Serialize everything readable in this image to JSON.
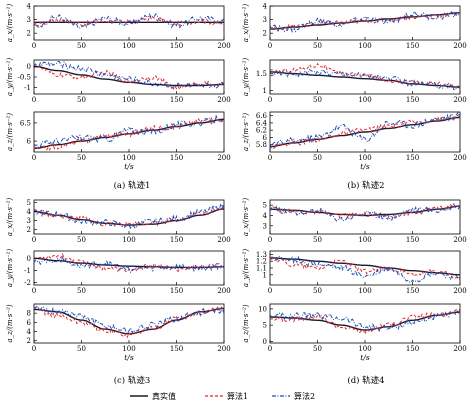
{
  "colors": {
    "truth": "#1a1a2e",
    "algo1": "#e8282a",
    "algo2": "#1f4fb4"
  },
  "legend": {
    "truth": "真实值",
    "algo1": "算法1",
    "algo2": "算法2"
  },
  "captions": [
    "(a) 轨迹1",
    "(b) 轨迹2",
    "(c) 轨迹3",
    "(d) 轨迹4"
  ],
  "xlabel": "t/s",
  "chart_data": [
    {
      "type": "line",
      "trajectory": "(a) 轨迹1",
      "row": 1,
      "xlim": [
        0,
        200
      ],
      "ylim": [
        1.5,
        4
      ],
      "xticks": [
        0,
        50,
        100,
        150,
        200
      ],
      "yticks": [
        2,
        3,
        4
      ],
      "ylabel": "a_x/(m·s⁻²)",
      "x": [
        0,
        25,
        50,
        75,
        100,
        125,
        150,
        175,
        200
      ],
      "series": [
        {
          "name": "真实值",
          "values": [
            2.8,
            2.8,
            2.8,
            2.8,
            2.8,
            2.8,
            2.8,
            2.8,
            2.8
          ]
        },
        {
          "name": "算法1",
          "values": [
            2.6,
            3.0,
            2.7,
            2.9,
            2.8,
            3.1,
            2.7,
            2.9,
            2.7
          ]
        },
        {
          "name": "算法2",
          "values": [
            2.5,
            3.2,
            2.4,
            3.1,
            2.7,
            3.3,
            2.6,
            3.1,
            2.9
          ]
        }
      ]
    },
    {
      "type": "line",
      "trajectory": "(a) 轨迹1",
      "row": 2,
      "xlim": [
        0,
        200
      ],
      "ylim": [
        -1.3,
        0.3
      ],
      "xticks": [
        0,
        50,
        100,
        150,
        200
      ],
      "yticks": [
        -1.0,
        -0.5,
        0.0
      ],
      "ylabel": "a_y/(m·s⁻²)",
      "x": [
        0,
        25,
        50,
        75,
        100,
        125,
        150,
        175,
        200
      ],
      "series": [
        {
          "name": "真实值",
          "values": [
            0.0,
            -0.2,
            -0.4,
            -0.6,
            -0.75,
            -0.85,
            -0.9,
            -0.9,
            -0.85
          ]
        },
        {
          "name": "算法1",
          "values": [
            0.0,
            -0.4,
            -0.5,
            -0.3,
            -0.7,
            -0.5,
            -1.0,
            -0.8,
            -0.9
          ]
        },
        {
          "name": "算法2",
          "values": [
            0.1,
            0.1,
            -0.1,
            -0.4,
            -0.6,
            -0.8,
            -0.9,
            -0.95,
            -0.85
          ]
        }
      ]
    },
    {
      "type": "line",
      "trajectory": "(a) 轨迹1",
      "row": 3,
      "xlim": [
        0,
        200
      ],
      "ylim": [
        5.7,
        6.8
      ],
      "xticks": [
        0,
        50,
        100,
        150,
        200
      ],
      "yticks": [
        6.0,
        6.5
      ],
      "ylabel": "a_z/(m·s⁻²)",
      "x": [
        0,
        25,
        50,
        75,
        100,
        125,
        150,
        175,
        200
      ],
      "series": [
        {
          "name": "真实值",
          "values": [
            5.8,
            5.9,
            6.0,
            6.1,
            6.2,
            6.3,
            6.4,
            6.5,
            6.6
          ]
        },
        {
          "name": "算法1",
          "values": [
            5.8,
            5.85,
            6.0,
            6.15,
            6.2,
            6.35,
            6.4,
            6.55,
            6.6
          ]
        },
        {
          "name": "算法2",
          "values": [
            5.9,
            6.0,
            6.1,
            6.05,
            6.3,
            6.25,
            6.45,
            6.5,
            6.65
          ]
        }
      ]
    },
    {
      "type": "line",
      "trajectory": "(b) 轨迹2",
      "row": 1,
      "xlim": [
        0,
        200
      ],
      "ylim": [
        1.5,
        4
      ],
      "xticks": [
        0,
        50,
        100,
        150,
        200
      ],
      "yticks": [
        2,
        3,
        4
      ],
      "ylabel": "a_x/(m·s⁻²)",
      "x": [
        0,
        25,
        50,
        75,
        100,
        125,
        150,
        175,
        200
      ],
      "series": [
        {
          "name": "真实值",
          "values": [
            2.3,
            2.45,
            2.6,
            2.75,
            2.9,
            3.05,
            3.2,
            3.35,
            3.5
          ]
        },
        {
          "name": "算法1",
          "values": [
            2.3,
            2.5,
            2.7,
            2.8,
            2.9,
            3.0,
            3.2,
            3.3,
            3.5
          ]
        },
        {
          "name": "算法2",
          "values": [
            2.4,
            2.3,
            2.9,
            2.6,
            3.1,
            2.8,
            3.4,
            3.2,
            3.4
          ]
        }
      ]
    },
    {
      "type": "line",
      "trajectory": "(b) 轨迹2",
      "row": 2,
      "xlim": [
        0,
        200
      ],
      "ylim": [
        0.9,
        1.9
      ],
      "xticks": [
        0,
        50,
        100,
        150,
        200
      ],
      "yticks": [
        1.0,
        1.5
      ],
      "ylabel": "a_y/(m·s⁻²)",
      "x": [
        0,
        25,
        50,
        75,
        100,
        125,
        150,
        175,
        200
      ],
      "series": [
        {
          "name": "真实值",
          "values": [
            1.55,
            1.5,
            1.45,
            1.4,
            1.35,
            1.3,
            1.2,
            1.15,
            1.1
          ]
        },
        {
          "name": "算法1",
          "values": [
            1.55,
            1.6,
            1.75,
            1.5,
            1.45,
            1.3,
            1.25,
            1.2,
            1.1
          ]
        },
        {
          "name": "算法2",
          "values": [
            1.5,
            1.5,
            1.55,
            1.5,
            1.45,
            1.35,
            1.2,
            1.15,
            1.1
          ]
        }
      ]
    },
    {
      "type": "line",
      "trajectory": "(b) 轨迹2",
      "row": 3,
      "xlim": [
        0,
        200
      ],
      "ylim": [
        5.6,
        6.7
      ],
      "xticks": [
        0,
        50,
        100,
        150,
        200
      ],
      "yticks": [
        5.8,
        6.0,
        6.2,
        6.4,
        6.6
      ],
      "ylabel": "a_z/(m·s⁻²)",
      "x": [
        0,
        25,
        50,
        75,
        100,
        125,
        150,
        175,
        200
      ],
      "series": [
        {
          "name": "真实值",
          "values": [
            5.75,
            5.85,
            5.95,
            6.05,
            6.15,
            6.25,
            6.35,
            6.45,
            6.55
          ]
        },
        {
          "name": "算法1",
          "values": [
            5.75,
            5.85,
            5.95,
            6.1,
            6.2,
            6.3,
            6.4,
            6.5,
            6.55
          ]
        },
        {
          "name": "算法2",
          "values": [
            5.8,
            5.9,
            6.0,
            6.3,
            5.95,
            6.4,
            6.35,
            6.5,
            6.6
          ]
        }
      ]
    },
    {
      "type": "line",
      "trajectory": "(c) 轨迹3",
      "row": 1,
      "xlim": [
        0,
        200
      ],
      "ylim": [
        1.5,
        5.3
      ],
      "xticks": [
        0,
        50,
        100,
        150,
        200
      ],
      "yticks": [
        2,
        3,
        4,
        5
      ],
      "ylabel": "a_x/(m·s⁻²)",
      "x": [
        0,
        25,
        50,
        75,
        100,
        125,
        150,
        175,
        200
      ],
      "series": [
        {
          "name": "真实值",
          "values": [
            4.0,
            3.6,
            3.1,
            2.7,
            2.5,
            2.6,
            3.0,
            3.6,
            4.3
          ]
        },
        {
          "name": "算法1",
          "values": [
            4.1,
            3.5,
            3.2,
            2.6,
            2.6,
            2.7,
            3.1,
            3.8,
            4.4
          ]
        },
        {
          "name": "算法2",
          "values": [
            3.9,
            3.7,
            2.9,
            2.8,
            2.4,
            2.9,
            3.2,
            3.9,
            4.6
          ]
        }
      ]
    },
    {
      "type": "line",
      "trajectory": "(c) 轨迹3",
      "row": 2,
      "xlim": [
        0,
        200
      ],
      "ylim": [
        -2.2,
        0.6
      ],
      "xticks": [
        0,
        50,
        100,
        150,
        200
      ],
      "yticks": [
        -2,
        -1,
        0
      ],
      "ylabel": "a_y/(m·s⁻²)",
      "x": [
        0,
        25,
        50,
        75,
        100,
        125,
        150,
        175,
        200
      ],
      "series": [
        {
          "name": "真实值",
          "values": [
            0.0,
            -0.2,
            -0.4,
            -0.55,
            -0.65,
            -0.7,
            -0.75,
            -0.75,
            -0.7
          ]
        },
        {
          "name": "算法1",
          "values": [
            0.0,
            0.2,
            -0.3,
            -0.8,
            -1.0,
            -0.6,
            -0.9,
            -0.7,
            -0.6
          ]
        },
        {
          "name": "算法2",
          "values": [
            -0.3,
            -0.1,
            -0.6,
            -0.4,
            -0.9,
            -0.8,
            -0.7,
            -0.8,
            -0.6
          ]
        }
      ]
    },
    {
      "type": "line",
      "trajectory": "(c) 轨迹3",
      "row": 3,
      "xlim": [
        0,
        200
      ],
      "ylim": [
        1.5,
        10
      ],
      "xticks": [
        0,
        50,
        100,
        150,
        200
      ],
      "yticks": [
        2,
        4,
        6,
        8
      ],
      "ylabel": "a_z/(m·s⁻²)",
      "x": [
        0,
        25,
        50,
        75,
        100,
        125,
        150,
        175,
        200
      ],
      "series": [
        {
          "name": "真实值",
          "values": [
            8.8,
            8.3,
            6.5,
            4.5,
            3.5,
            4.5,
            6.5,
            8.3,
            9.0
          ]
        },
        {
          "name": "算法1",
          "values": [
            8.8,
            7.5,
            6.0,
            4.2,
            3.3,
            4.8,
            6.8,
            8.0,
            9.1
          ]
        },
        {
          "name": "算法2",
          "values": [
            8.9,
            8.6,
            7.3,
            5.2,
            4.2,
            5.3,
            6.8,
            8.2,
            8.6
          ]
        }
      ]
    },
    {
      "type": "line",
      "trajectory": "(d) 轨迹4",
      "row": 1,
      "xlim": [
        0,
        200
      ],
      "ylim": [
        2.2,
        5.5
      ],
      "xticks": [
        0,
        50,
        100,
        150,
        200
      ],
      "yticks": [
        3,
        4,
        5
      ],
      "ylabel": "a_x/(m·s⁻²)",
      "x": [
        0,
        25,
        50,
        75,
        100,
        125,
        150,
        175,
        200
      ],
      "series": [
        {
          "name": "真实值",
          "values": [
            4.6,
            4.5,
            4.3,
            4.1,
            4.0,
            4.1,
            4.3,
            4.6,
            4.9
          ]
        },
        {
          "name": "算法1",
          "values": [
            4.6,
            4.4,
            4.3,
            4.0,
            4.1,
            4.0,
            4.2,
            4.7,
            4.9
          ]
        },
        {
          "name": "算法2",
          "values": [
            4.7,
            4.3,
            4.4,
            3.7,
            4.2,
            3.8,
            4.6,
            4.5,
            4.9
          ]
        }
      ]
    },
    {
      "type": "line",
      "trajectory": "(d) 轨迹4",
      "row": 2,
      "xlim": [
        0,
        200
      ],
      "ylim": [
        0.85,
        1.35
      ],
      "xticks": [
        0,
        50,
        100,
        150,
        200
      ],
      "yticks": [
        1.0,
        1.1,
        1.2,
        1.3
      ],
      "ylabel": "a_y/(m·s⁻²)",
      "x": [
        0,
        25,
        50,
        75,
        100,
        125,
        150,
        175,
        200
      ],
      "series": [
        {
          "name": "真实值",
          "values": [
            1.25,
            1.23,
            1.2,
            1.17,
            1.14,
            1.1,
            1.06,
            1.03,
            1.0
          ]
        },
        {
          "name": "算法1",
          "values": [
            1.25,
            1.15,
            1.1,
            1.2,
            1.05,
            1.1,
            1.0,
            1.05,
            0.95
          ]
        },
        {
          "name": "算法2",
          "values": [
            1.24,
            1.22,
            1.15,
            1.1,
            0.98,
            1.08,
            0.92,
            1.02,
            0.95
          ]
        }
      ]
    },
    {
      "type": "line",
      "trajectory": "(d) 轨迹4",
      "row": 3,
      "xlim": [
        0,
        200
      ],
      "ylim": [
        -0.5,
        11.5
      ],
      "xticks": [
        0,
        50,
        100,
        150,
        200
      ],
      "yticks": [
        0,
        5,
        10
      ],
      "ylabel": "a_z/(m·s⁻²)",
      "x": [
        0,
        25,
        50,
        75,
        100,
        125,
        150,
        175,
        200
      ],
      "series": [
        {
          "name": "真实值",
          "values": [
            7.5,
            7.2,
            6.5,
            5.0,
            3.5,
            4.5,
            6.5,
            8.0,
            9.0
          ]
        },
        {
          "name": "算法1",
          "values": [
            7.0,
            6.8,
            7.5,
            4.5,
            3.0,
            5.0,
            7.5,
            8.2,
            9.5
          ]
        },
        {
          "name": "算法2",
          "values": [
            7.8,
            7.8,
            7.8,
            7.2,
            4.5,
            4.2,
            6.0,
            7.5,
            8.5
          ]
        }
      ]
    }
  ]
}
